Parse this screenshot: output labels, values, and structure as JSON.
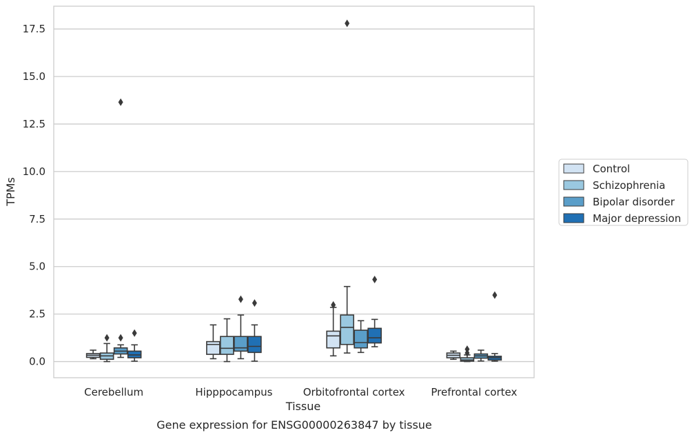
{
  "caption": "Gene expression for ENSG00000263847 by tissue",
  "chart_data": {
    "type": "box",
    "xlabel": "Tissue",
    "ylabel": "TPMs",
    "ylim": [
      -0.85,
      18.7
    ],
    "yticks": [
      0.0,
      2.5,
      5.0,
      7.5,
      10.0,
      12.5,
      15.0,
      17.5
    ],
    "ytick_labels": [
      "0.0",
      "2.5",
      "5.0",
      "7.5",
      "10.0",
      "12.5",
      "15.0",
      "17.5"
    ],
    "grid": "horizontal",
    "legend_position": "right",
    "categories": [
      "Cerebellum",
      "Hipppocampus",
      "Orbitofrontal cortex",
      "Prefrontal cortex"
    ],
    "series": [
      {
        "name": "Control",
        "color": "#d2e3f3",
        "boxes": [
          {
            "whislo": 0.15,
            "q1": 0.22,
            "med": 0.33,
            "q3": 0.42,
            "whishi": 0.6,
            "fliers": []
          },
          {
            "whislo": 0.15,
            "q1": 0.38,
            "med": 0.9,
            "q3": 1.05,
            "whishi": 1.93,
            "fliers": []
          },
          {
            "whislo": 0.3,
            "q1": 0.72,
            "med": 1.35,
            "q3": 1.6,
            "whishi": 2.85,
            "fliers": [
              2.98
            ]
          },
          {
            "whislo": 0.12,
            "q1": 0.2,
            "med": 0.33,
            "q3": 0.45,
            "whishi": 0.55,
            "fliers": []
          }
        ]
      },
      {
        "name": "Schizophrenia",
        "color": "#9ac8e0",
        "boxes": [
          {
            "whislo": 0.0,
            "q1": 0.12,
            "med": 0.3,
            "q3": 0.45,
            "whishi": 0.95,
            "fliers": [
              1.25
            ]
          },
          {
            "whislo": 0.0,
            "q1": 0.38,
            "med": 0.7,
            "q3": 1.32,
            "whishi": 2.25,
            "fliers": []
          },
          {
            "whislo": 0.45,
            "q1": 0.9,
            "med": 1.8,
            "q3": 2.45,
            "whishi": 3.95,
            "fliers": [
              17.8
            ]
          },
          {
            "whislo": 0.0,
            "q1": 0.02,
            "med": 0.08,
            "q3": 0.2,
            "whishi": 0.35,
            "fliers": [
              0.45,
              0.65
            ]
          }
        ]
      },
      {
        "name": "Bipolar disorder",
        "color": "#5a9ec9",
        "boxes": [
          {
            "whislo": 0.22,
            "q1": 0.4,
            "med": 0.55,
            "q3": 0.72,
            "whishi": 0.88,
            "fliers": [
              1.25,
              13.65
            ]
          },
          {
            "whislo": 0.15,
            "q1": 0.55,
            "med": 0.72,
            "q3": 1.32,
            "whishi": 2.45,
            "fliers": [
              3.28
            ]
          },
          {
            "whislo": 0.48,
            "q1": 0.72,
            "med": 1.0,
            "q3": 1.65,
            "whishi": 2.15,
            "fliers": []
          },
          {
            "whislo": 0.03,
            "q1": 0.18,
            "med": 0.3,
            "q3": 0.4,
            "whishi": 0.6,
            "fliers": []
          }
        ]
      },
      {
        "name": "Major depression",
        "color": "#2070b4",
        "boxes": [
          {
            "whislo": 0.02,
            "q1": 0.2,
            "med": 0.35,
            "q3": 0.55,
            "whishi": 0.88,
            "fliers": [
              1.5
            ]
          },
          {
            "whislo": 0.02,
            "q1": 0.48,
            "med": 0.8,
            "q3": 1.32,
            "whishi": 1.93,
            "fliers": [
              3.08
            ]
          },
          {
            "whislo": 0.78,
            "q1": 0.98,
            "med": 1.25,
            "q3": 1.75,
            "whishi": 2.22,
            "fliers": [
              4.32
            ]
          },
          {
            "whislo": 0.02,
            "q1": 0.08,
            "med": 0.2,
            "q3": 0.28,
            "whishi": 0.42,
            "fliers": [
              3.5
            ]
          }
        ]
      }
    ]
  }
}
